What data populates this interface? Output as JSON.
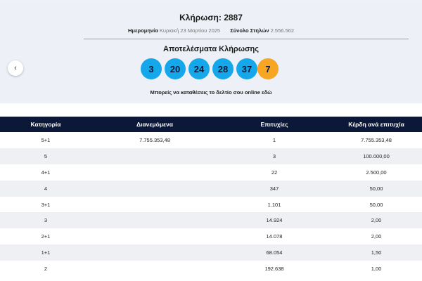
{
  "draw": {
    "title": "Κλήρωση: 2887",
    "date_label": "Ημερομηνία",
    "date_value": "Κυριακή 23 Μαρτίου 2025",
    "columns_label": "Σύνολο Στηλών",
    "columns_value": "2.556.562",
    "results_title": "Αποτελέσματα Κλήρωσης",
    "numbers": [
      "3",
      "20",
      "24",
      "28",
      "37"
    ],
    "bonus": "7",
    "online_text": "Μπορείς να καταθέσεις το δελτίο σου online",
    "online_link": "εδώ",
    "prev_icon": "‹"
  },
  "colors": {
    "ball": "#14a8ea",
    "bonus_ball": "#f6a623",
    "header_bg": "#0c1838"
  },
  "table": {
    "headers": [
      "Κατηγορία",
      "Διανεμόμενα",
      "Επιτυχίες",
      "Κέρδη ανά επιτυχία"
    ],
    "rows": [
      [
        "5+1",
        "7.755.353,48",
        "1",
        "7.755.353,48"
      ],
      [
        "5",
        "",
        "3",
        "100.000,00"
      ],
      [
        "4+1",
        "",
        "22",
        "2.500,00"
      ],
      [
        "4",
        "",
        "347",
        "50,00"
      ],
      [
        "3+1",
        "",
        "1.101",
        "50,00"
      ],
      [
        "3",
        "",
        "14.924",
        "2,00"
      ],
      [
        "2+1",
        "",
        "14.078",
        "2,00"
      ],
      [
        "1+1",
        "",
        "68.054",
        "1,50"
      ],
      [
        "2",
        "",
        "192.638",
        "1,00"
      ]
    ]
  }
}
